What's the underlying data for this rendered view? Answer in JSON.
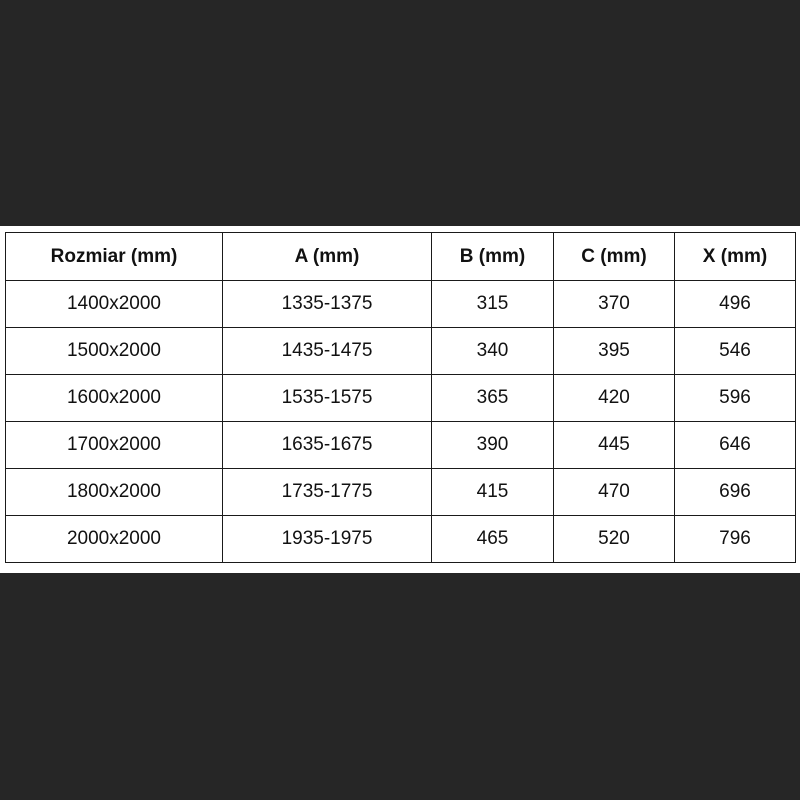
{
  "table": {
    "headers": [
      "Rozmiar (mm)",
      "A (mm)",
      "B (mm)",
      "C (mm)",
      "X (mm)"
    ],
    "rows": [
      [
        "1400x2000",
        "1335-1375",
        "315",
        "370",
        "496"
      ],
      [
        "1500x2000",
        "1435-1475",
        "340",
        "395",
        "546"
      ],
      [
        "1600x2000",
        "1535-1575",
        "365",
        "420",
        "596"
      ],
      [
        "1700x2000",
        "1635-1675",
        "390",
        "445",
        "646"
      ],
      [
        "1800x2000",
        "1735-1775",
        "415",
        "470",
        "696"
      ],
      [
        "2000x2000",
        "1935-1975",
        "465",
        "520",
        "796"
      ]
    ]
  }
}
